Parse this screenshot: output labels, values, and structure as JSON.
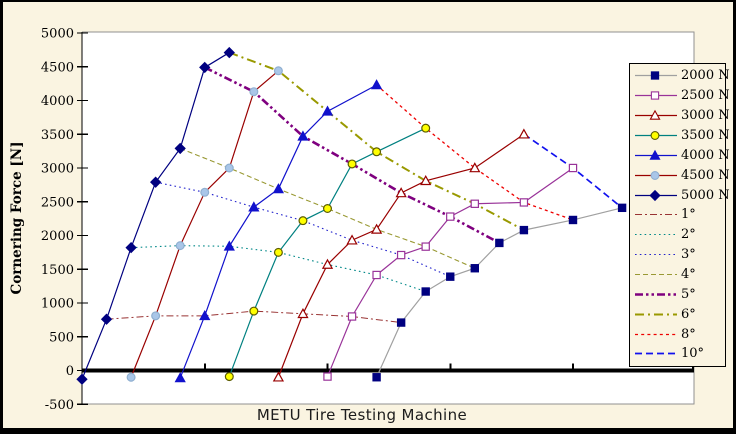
{
  "page": {
    "background_color": "#FAF4E1",
    "plot_background_color": "#FFFFFF",
    "border_color": "#000000",
    "plot_border_color": "#909090"
  },
  "chart_data": {
    "type": "line",
    "title": "",
    "xlabel": "METU Tire Testing Machine",
    "ylabel": "Cornering Force [N]",
    "ylim": [
      -500,
      5000
    ],
    "y_ticks": [
      5000,
      4500,
      4000,
      3500,
      3000,
      2500,
      2000,
      1500,
      1000,
      500,
      0,
      -500
    ],
    "x_axis_note": "unlabeled staggered slip-angle axis; each lighter load curve is offset +2 deg to the right",
    "x_ticks_deg": [
      5,
      10,
      15,
      20,
      25
    ],
    "legend_position": "right",
    "grid": false,
    "load_series": [
      {
        "label": "2000 N",
        "x_offset_deg": 12,
        "line_color": "#A0A0A0",
        "marker_shape": "square",
        "marker_fill": "#000080",
        "marker_stroke": "#000080",
        "angles": [
          0,
          1,
          2,
          3,
          4,
          5,
          6,
          8,
          10
        ],
        "forces": [
          -100,
          710,
          1170,
          1390,
          1515,
          1890,
          2080,
          2230,
          2410
        ]
      },
      {
        "label": "2500 N",
        "x_offset_deg": 10,
        "line_color": "#993399",
        "marker_shape": "square",
        "marker_fill": "#FFFFFF",
        "marker_stroke": "#993399",
        "angles": [
          0,
          1,
          2,
          3,
          4,
          5,
          6,
          8,
          10
        ],
        "forces": [
          -90,
          800,
          1415,
          1710,
          1835,
          2280,
          2470,
          2490,
          3000
        ]
      },
      {
        "label": "3000 N",
        "x_offset_deg": 8,
        "line_color": "#990000",
        "marker_shape": "triangle",
        "marker_fill": "#FFFFFF",
        "marker_stroke": "#990000",
        "angles": [
          0,
          1,
          2,
          3,
          4,
          5,
          6,
          8,
          10
        ],
        "forces": [
          -100,
          840,
          1570,
          1930,
          2090,
          2630,
          2810,
          3000,
          3500
        ]
      },
      {
        "label": "3500 N",
        "x_offset_deg": 6,
        "line_color": "#008080",
        "marker_shape": "circle",
        "marker_fill": "#FFFF00",
        "marker_stroke": "#5C5C00",
        "angles": [
          0,
          1,
          2,
          3,
          4,
          5,
          6,
          8
        ],
        "forces": [
          -90,
          880,
          1750,
          2220,
          2400,
          3060,
          3240,
          3590
        ]
      },
      {
        "label": "4000 N",
        "x_offset_deg": 4,
        "line_color": "#1111CC",
        "marker_shape": "triangle",
        "marker_fill": "#1111CC",
        "marker_stroke": "#1111CC",
        "angles": [
          0,
          1,
          2,
          3,
          4,
          5,
          6,
          8
        ],
        "forces": [
          -110,
          810,
          1840,
          2420,
          2690,
          3470,
          3840,
          4230
        ]
      },
      {
        "label": "4500 N",
        "x_offset_deg": 2,
        "line_color": "#990000",
        "marker_shape": "circle",
        "marker_fill": "#A9C6E8",
        "marker_stroke": "#8FAFD0",
        "angles": [
          0,
          1,
          2,
          3,
          4,
          5,
          6
        ],
        "forces": [
          -100,
          810,
          1850,
          2640,
          3000,
          4130,
          4440
        ]
      },
      {
        "label": "5000 N",
        "x_offset_deg": 0,
        "line_color": "#000080",
        "marker_shape": "diamond",
        "marker_fill": "#000080",
        "marker_stroke": "#000080",
        "angles": [
          0,
          1,
          2,
          3,
          4,
          5,
          6
        ],
        "forces": [
          -130,
          760,
          1820,
          2790,
          3290,
          4490,
          4710
        ]
      }
    ],
    "angle_lines": [
      {
        "label": "1°",
        "angle": 1,
        "color": "#993333",
        "width": 1,
        "dash": "7,3,2,3"
      },
      {
        "label": "2°",
        "angle": 2,
        "color": "#008888",
        "width": 1.1,
        "dash": "1.6,3.2"
      },
      {
        "label": "3°",
        "angle": 3,
        "color": "#2222CC",
        "width": 1.1,
        "dash": "1.6,3.2"
      },
      {
        "label": "4°",
        "angle": 4,
        "color": "#999933",
        "width": 1.1,
        "dash": "5,3"
      },
      {
        "label": "5°",
        "angle": 5,
        "color": "#7F007F",
        "width": 2.6,
        "dash": "8,3,2.5,3,2.5,3"
      },
      {
        "label": "6°",
        "angle": 6,
        "color": "#999900",
        "width": 2,
        "dash": "9,4,2,4"
      },
      {
        "label": "8°",
        "angle": 8,
        "color": "#EE0000",
        "width": 1.3,
        "dash": "3,3.2"
      },
      {
        "label": "10°",
        "angle": 10,
        "color": "#1111EE",
        "width": 1.7,
        "dash": "7,4"
      }
    ]
  }
}
